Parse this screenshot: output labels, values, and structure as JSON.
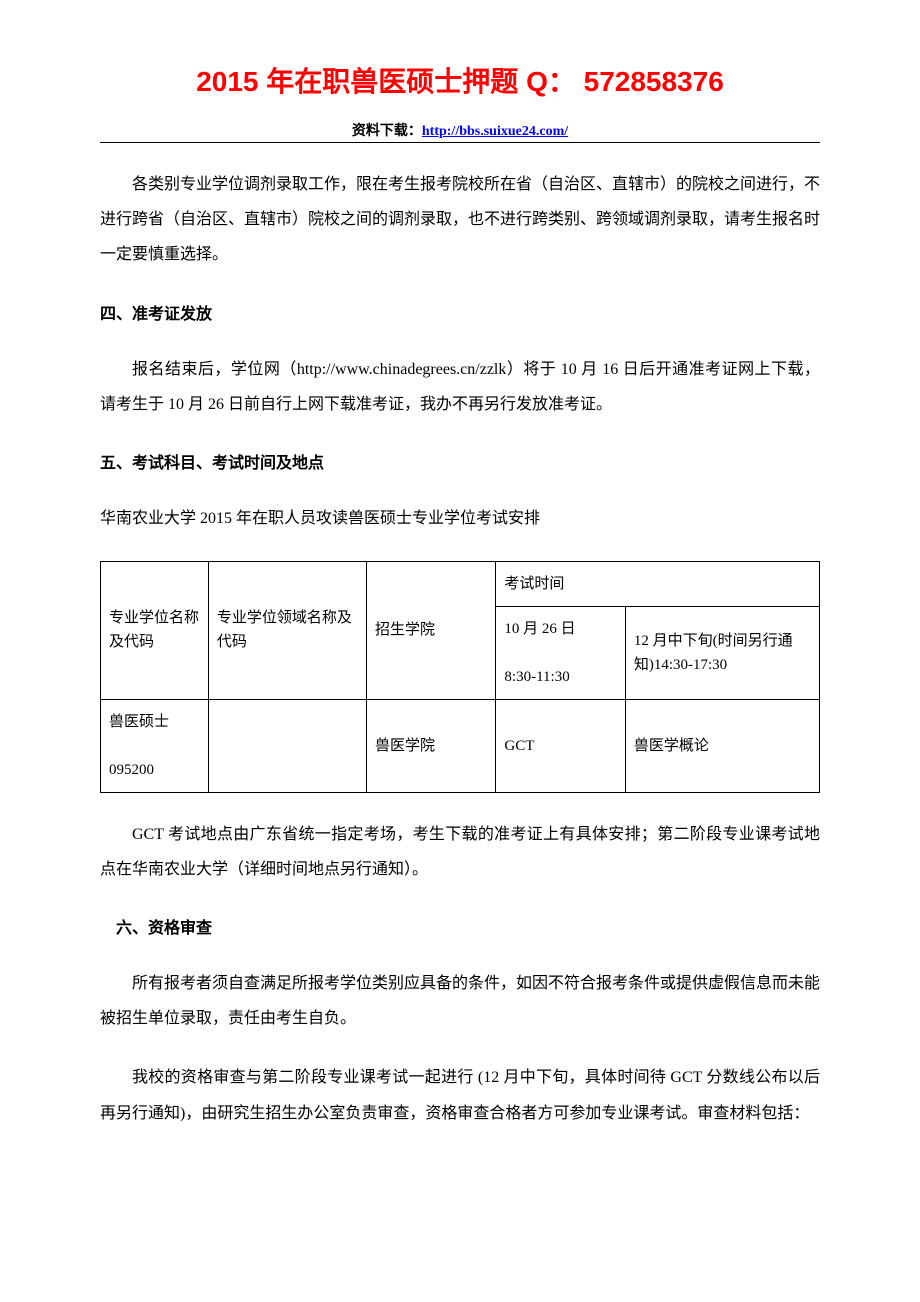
{
  "header": {
    "title": "2015 年在职兽医硕士押题 Q： 572858376",
    "download_label": "资料下载：",
    "download_url_text": "http://bbs.suixue24.com/",
    "download_url_href": "http://bbs.suixue24.com/"
  },
  "colors": {
    "title": "#ff0000",
    "link": "#0000ff",
    "text": "#000000",
    "border": "#000000",
    "background": "#ffffff"
  },
  "paragraphs": {
    "p1": "各类别专业学位调剂录取工作，限在考生报考院校所在省（自治区、直辖市）的院校之间进行，不进行跨省（自治区、直辖市）院校之间的调剂录取，也不进行跨类别、跨领域调剂录取，请考生报名时一定要慎重选择。",
    "h4": "四、准考证发放",
    "p2": "报名结束后，学位网（http://www.chinadegrees.cn/zzlk）将于 10 月 16 日后开通准考证网上下载，请考生于 10 月 26 日前自行上网下载准考证，我办不再另行发放准考证。",
    "h5": "五、考试科目、考试时间及地点",
    "p3": "华南农业大学 2015 年在职人员攻读兽医硕士专业学位考试安排",
    "p4": "GCT 考试地点由广东省统一指定考场，考生下载的准考证上有具体安排；第二阶段专业课考试地点在华南农业大学（详细时间地点另行通知）。",
    "h6": "六、资格审查",
    "p5": "所有报考者须自查满足所报考学位类别应具备的条件，如因不符合报考条件或提供虚假信息而未能被招生单位录取，责任由考生自负。",
    "p6": "我校的资格审查与第二阶段专业课考试一起进行 (12 月中下旬，具体时间待 GCT 分数线公布以后再另行通知)，由研究生招生办公室负责审查，资格审查合格者方可参加专业课考试。审查材料包括："
  },
  "table": {
    "headers": {
      "col1": "专业学位名称及代码",
      "col2": "专业学位领域名称及代码",
      "col3": "招生学院",
      "exam_time_header": "考试时间",
      "col4": "10 月 26 日\n\n8:30-11:30",
      "col5": "12 月中下旬(时间另行通知)14:30-17:30"
    },
    "row": {
      "c1": "兽医硕士\n\n095200",
      "c2": "",
      "c3": "兽医学院",
      "c4": "GCT",
      "c5": "兽医学概论"
    }
  }
}
